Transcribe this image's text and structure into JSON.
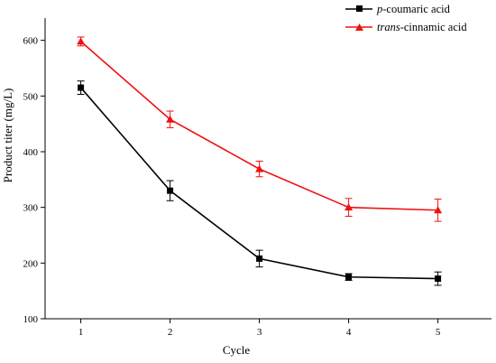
{
  "chart_data": {
    "type": "line",
    "title": "",
    "xlabel": "Cycle",
    "ylabel": "Product titer (mg/L)",
    "x": [
      1,
      2,
      3,
      4,
      5
    ],
    "xticks": [
      "1",
      "2",
      "3",
      "4",
      "5"
    ],
    "xlim": [
      0.6,
      5.6
    ],
    "ylim": [
      100,
      640
    ],
    "yticks": [
      "100",
      "200",
      "300",
      "400",
      "500",
      "600"
    ],
    "grid": false,
    "legend_position": "top-right",
    "series": [
      {
        "name_prefix": "p",
        "name_suffix": "-coumaric acid",
        "color": "#000000",
        "marker": "square",
        "values": [
          515,
          330,
          208,
          175,
          172
        ],
        "errors": [
          12,
          18,
          15,
          6,
          12
        ]
      },
      {
        "name_prefix": "trans",
        "name_suffix": "-cinnamic acid",
        "color": "#ee1111",
        "marker": "triangle",
        "values": [
          598,
          458,
          369,
          300,
          295
        ],
        "errors": [
          8,
          15,
          14,
          16,
          20
        ]
      }
    ]
  }
}
